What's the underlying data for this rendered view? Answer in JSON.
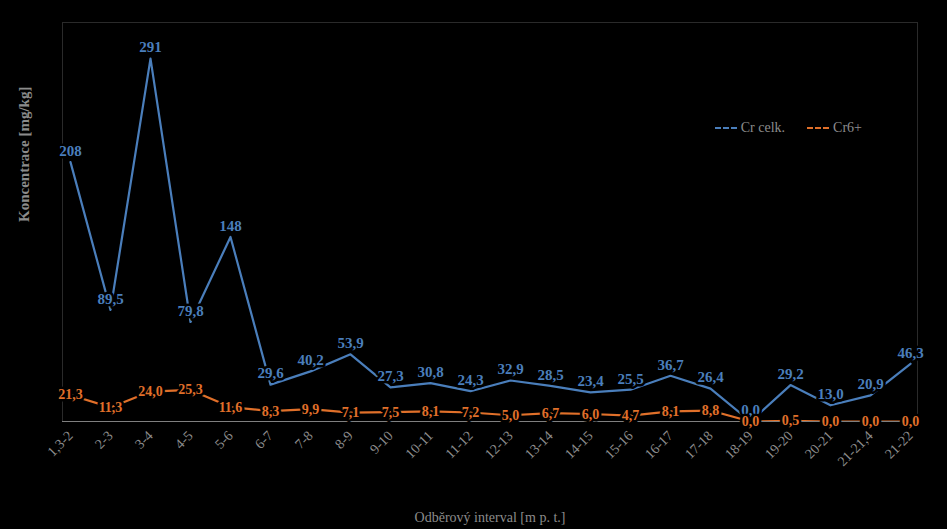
{
  "chart_data": {
    "type": "line",
    "x_label": "Odběrový interval [m p. t.]",
    "y_label": "Koncentrace [mg/kg]",
    "categories": [
      "1,3-2",
      "2-3",
      "3-4",
      "4-5",
      "5-6",
      "6-7",
      "7-8",
      "8-9",
      "9-10",
      "10-11",
      "11-12",
      "12-13",
      "13-14",
      "14-15",
      "15-16",
      "16-17",
      "17-18",
      "18-19",
      "19-20",
      "20-21",
      "21-21,4",
      "21-22"
    ],
    "series": [
      {
        "name": "Cr celk.",
        "color": "#4a7ebb",
        "values": [
          208,
          89.5,
          291,
          79.8,
          148,
          29.6,
          40.2,
          53.9,
          27.3,
          30.8,
          24.3,
          32.9,
          28.5,
          23.4,
          25.5,
          36.7,
          26.4,
          0.0,
          29.2,
          13.0,
          20.9,
          46.3
        ],
        "value_labels": [
          "208",
          "89,5",
          "291",
          "79,8",
          "148",
          "29,6",
          "40,2",
          "53,9",
          "27,3",
          "30,8",
          "24,3",
          "32,9",
          "28,5",
          "23,4",
          "25,5",
          "36,7",
          "26,4",
          "0,0",
          "29,2",
          "13,0",
          "20,9",
          "46,3"
        ]
      },
      {
        "name": "Cr6+",
        "color": "#e0702a",
        "values": [
          21.3,
          11.3,
          24.0,
          25.3,
          11.6,
          8.3,
          9.9,
          7.1,
          7.5,
          8.1,
          7.2,
          5.0,
          6.7,
          6.0,
          4.7,
          8.1,
          8.8,
          0.0,
          0.5,
          0.0,
          0.0,
          0.0
        ],
        "value_labels": [
          "21,3",
          "11,3",
          "24,0",
          "25,3",
          "11,6",
          "8,3",
          "9,9",
          "7,1",
          "7,5",
          "8,1",
          "7,2",
          "5,0",
          "6,7",
          "6,0",
          "4,7",
          "8,1",
          "8,8",
          "0,0",
          "0,5",
          "0,0",
          "0,0",
          "0,0"
        ]
      }
    ],
    "ylim": [
      0,
      320
    ],
    "tick_labels": "x",
    "data_labels": true,
    "grid": false,
    "legend": "top-right"
  }
}
